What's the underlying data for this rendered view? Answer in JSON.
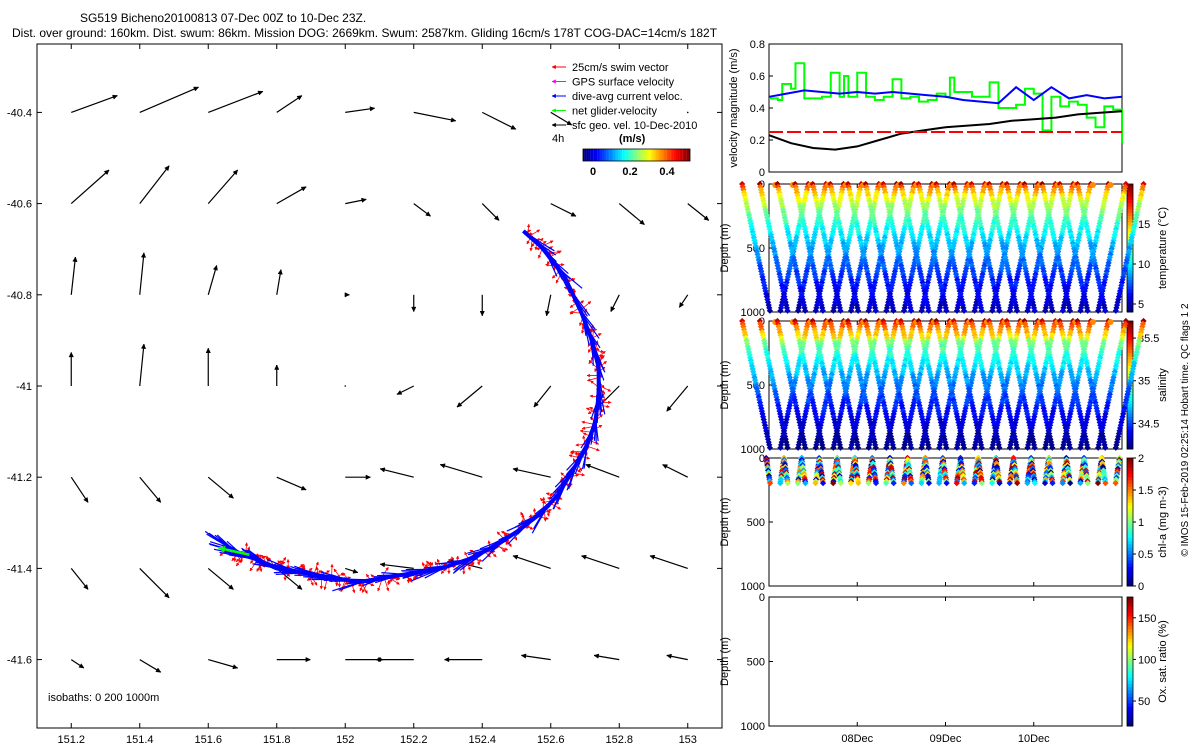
{
  "title_line1": "SG519 Bicheno20100813 07-Dec 00Z to 10-Dec 23Z.",
  "title_line2": "Dist. over ground: 160km. Dist. swum: 86km. Mission DOG: 2669km. Swum: 2587km. Gliding 16cm/s 178T COG-DAC=14cm/s 182T",
  "chart_data": [
    {
      "type": "vector-map",
      "x_ticks": [
        "151.2",
        "151.4",
        "151.6",
        "151.8",
        "152",
        "152.2",
        "152.4",
        "152.6",
        "152.8",
        "153"
      ],
      "y_ticks": [
        "-40.4",
        "-40.6",
        "-40.8",
        "-41",
        "-41.2",
        "-41.4",
        "-41.6"
      ],
      "xlim": [
        151.1,
        153.1
      ],
      "ylim": [
        -41.75,
        -40.25
      ],
      "legend": {
        "placement": "top-right",
        "entries": [
          {
            "label": "25cm/s swim vector",
            "color": "#ff0000"
          },
          {
            "label": "GPS surface velocity",
            "color": "#ff00ff"
          },
          {
            "label": "dive-avg current veloc.",
            "color": "#0000ff"
          },
          {
            "label": "net glider velocity",
            "color": "#00ff00"
          },
          {
            "label": "sfc geo. vel. 10-Dec-2010",
            "color": "#000000"
          }
        ],
        "colorbar_prefix": "4h",
        "colorbar_label": "(m/s)",
        "colorbar_ticks": [
          "0",
          "0.2",
          "0.4"
        ]
      },
      "isobath_label": "isobaths: 0   200   1000m",
      "track": {
        "color": "#0000ff",
        "lon": [
          152.52,
          152.58,
          152.64,
          152.69,
          152.72,
          152.74,
          152.74,
          152.73,
          152.7,
          152.66,
          152.62,
          152.57,
          152.5,
          152.44,
          152.36,
          152.28,
          152.2,
          152.12,
          152.04,
          151.96,
          151.88,
          151.8,
          151.74,
          151.7,
          151.65
        ],
        "lat": [
          -40.66,
          -40.7,
          -40.76,
          -40.84,
          -40.9,
          -40.96,
          -41.02,
          -41.08,
          -41.14,
          -41.19,
          -41.24,
          -41.28,
          -41.32,
          -41.35,
          -41.38,
          -41.4,
          -41.41,
          -41.42,
          -41.43,
          -41.42,
          -41.41,
          -41.4,
          -41.38,
          -41.37,
          -41.35
        ]
      },
      "geo_vectors": {
        "lon": [
          151.2,
          151.4,
          151.6,
          151.8,
          152.0,
          152.2,
          152.4,
          152.6,
          152.8,
          153.0
        ],
        "lat": [
          -40.4,
          -40.6,
          -40.8,
          -41.0,
          -41.2,
          -41.4,
          -41.6
        ],
        "u": [
          [
            0.11,
            0.14,
            0.13,
            0.06,
            0.07,
            0.1,
            0.08,
            0.05,
            0.0,
            0.0
          ],
          [
            0.09,
            0.07,
            0.07,
            0.07,
            0.05,
            0.04,
            0.04,
            0.06,
            0.06,
            0.05
          ],
          [
            0.01,
            0.01,
            0.02,
            0.01,
            0.01,
            0.0,
            0.0,
            -0.01,
            -0.02,
            -0.02
          ],
          [
            0.0,
            0.01,
            0.0,
            0.0,
            0.0,
            -0.04,
            -0.06,
            -0.04,
            -0.06,
            -0.05
          ],
          [
            0.04,
            0.05,
            0.06,
            0.07,
            0.06,
            -0.08,
            -0.1,
            -0.09,
            -0.08,
            -0.06
          ],
          [
            0.04,
            0.07,
            0.06,
            0.06,
            0.03,
            -0.08,
            -0.08,
            -0.09,
            -0.09,
            -0.09
          ],
          [
            0.03,
            0.05,
            0.07,
            0.08,
            0.09,
            -0.09,
            -0.09,
            -0.07,
            -0.06,
            -0.05
          ]
        ],
        "v": [
          [
            0.04,
            0.06,
            0.05,
            0.04,
            0.01,
            -0.02,
            -0.04,
            -0.03,
            0.0,
            0.0
          ],
          [
            0.08,
            0.09,
            0.08,
            0.04,
            0.01,
            -0.03,
            -0.04,
            -0.03,
            -0.05,
            -0.04
          ],
          [
            0.09,
            0.1,
            0.07,
            0.06,
            0.0,
            -0.04,
            -0.05,
            -0.05,
            -0.04,
            -0.03
          ],
          [
            0.08,
            0.1,
            0.09,
            0.05,
            0.0,
            -0.02,
            -0.05,
            -0.05,
            -0.06,
            -0.06
          ],
          [
            -0.06,
            -0.06,
            -0.05,
            -0.03,
            0.0,
            0.02,
            0.03,
            0.02,
            0.03,
            0.03
          ],
          [
            -0.05,
            -0.07,
            -0.05,
            -0.05,
            -0.01,
            0.01,
            0.02,
            0.03,
            0.03,
            0.03
          ],
          [
            -0.02,
            -0.03,
            -0.02,
            0.0,
            0.0,
            0.0,
            0.0,
            0.01,
            0.01,
            0.01
          ]
        ]
      }
    },
    {
      "type": "line",
      "ylabel": "velocity magnitude (m/s)",
      "ylim": [
        0,
        0.8
      ],
      "y_ticks": [
        "0",
        "0.2",
        "0.4",
        "0.6",
        "0.8"
      ],
      "x_ticks": [
        "08Dec",
        "09Dec",
        "10Dec"
      ],
      "series": [
        {
          "color": "#00ff00",
          "t": [
            0,
            0.1,
            0.15,
            0.25,
            0.3,
            0.4,
            0.55,
            0.6,
            0.7,
            0.8,
            0.85,
            0.9,
            1.0,
            1.1,
            1.2,
            1.3,
            1.4,
            1.5,
            1.6,
            1.7,
            1.8,
            1.9,
            2.0,
            2.05,
            2.1,
            2.3,
            2.5,
            2.6,
            2.8,
            2.9,
            3.0,
            3.1,
            3.2,
            3.3,
            3.4,
            3.5,
            3.6,
            3.7,
            3.8,
            3.9,
            4.0
          ],
          "y": [
            0.46,
            0.45,
            0.55,
            0.52,
            0.68,
            0.46,
            0.46,
            0.47,
            0.62,
            0.47,
            0.6,
            0.47,
            0.62,
            0.47,
            0.45,
            0.47,
            0.58,
            0.46,
            0.47,
            0.44,
            0.45,
            0.49,
            0.47,
            0.59,
            0.5,
            0.47,
            0.56,
            0.4,
            0.42,
            0.52,
            0.49,
            0.26,
            0.47,
            0.41,
            0.44,
            0.42,
            0.34,
            0.28,
            0.41,
            0.39,
            0.18
          ]
        },
        {
          "color": "#0000ff",
          "t": [
            0,
            0.2,
            0.4,
            0.6,
            0.8,
            1.0,
            1.2,
            1.4,
            1.6,
            1.8,
            2.0,
            2.2,
            2.4,
            2.6,
            2.8,
            3.0,
            3.2,
            3.4,
            3.6,
            3.8,
            4.0
          ],
          "y": [
            0.47,
            0.49,
            0.51,
            0.5,
            0.49,
            0.5,
            0.49,
            0.5,
            0.49,
            0.48,
            0.47,
            0.45,
            0.44,
            0.43,
            0.53,
            0.45,
            0.53,
            0.46,
            0.48,
            0.46,
            0.47
          ]
        },
        {
          "color": "#000000",
          "t": [
            0,
            0.25,
            0.5,
            0.75,
            1.0,
            1.25,
            1.5,
            1.75,
            2.0,
            2.25,
            2.5,
            2.75,
            3.0,
            3.25,
            3.5,
            3.75,
            4.0
          ],
          "y": [
            0.23,
            0.18,
            0.15,
            0.14,
            0.16,
            0.2,
            0.24,
            0.26,
            0.28,
            0.29,
            0.3,
            0.32,
            0.33,
            0.34,
            0.36,
            0.37,
            0.38
          ]
        },
        {
          "color": "#ff0000",
          "dashed": true,
          "t": [
            0,
            4
          ],
          "y": [
            0.25,
            0.25
          ]
        }
      ]
    },
    {
      "type": "scatter",
      "ylabel": "Depth (m)",
      "colorbar_label": "temperature (°C)",
      "colorbar_ticks": [
        "5",
        "10",
        "15"
      ],
      "clim": [
        4,
        20
      ],
      "y_ticks": [
        "0",
        "500",
        "1000"
      ],
      "ylim": [
        1000,
        0
      ],
      "dives": 20,
      "max_depth": 1000
    },
    {
      "type": "scatter",
      "ylabel": "Depth (m)",
      "colorbar_label": "salinity",
      "colorbar_ticks": [
        "34.5",
        "35",
        "35.5"
      ],
      "clim": [
        34.2,
        35.7
      ],
      "y_ticks": [
        "0",
        "500",
        "1000"
      ],
      "ylim": [
        1000,
        0
      ],
      "dives": 20,
      "max_depth": 1000
    },
    {
      "type": "scatter",
      "ylabel": "Depth (m)",
      "colorbar_label": "chl-a (mg m-3)",
      "colorbar_ticks": [
        "0",
        "0.5",
        "1",
        "1.5",
        "2"
      ],
      "clim": [
        0,
        2
      ],
      "y_ticks": [
        "0",
        "500",
        "1000"
      ],
      "ylim": [
        1000,
        0
      ],
      "dives": 20,
      "max_depth": 200
    },
    {
      "type": "scatter",
      "ylabel": "Depth (m)",
      "colorbar_label": "Ox. sat. ratio (%)",
      "colorbar_ticks": [
        "50",
        "100",
        "150"
      ],
      "clim": [
        20,
        175
      ],
      "y_ticks": [
        "0",
        "500",
        "1000"
      ],
      "ylim": [
        1000,
        0
      ],
      "x_ticks": [
        "08Dec",
        "09Dec",
        "10Dec"
      ],
      "dives": 0
    }
  ],
  "side_note": "© IMOS 15-Feb-2019 02:25:14 Hobart time. QC flags 1  2"
}
